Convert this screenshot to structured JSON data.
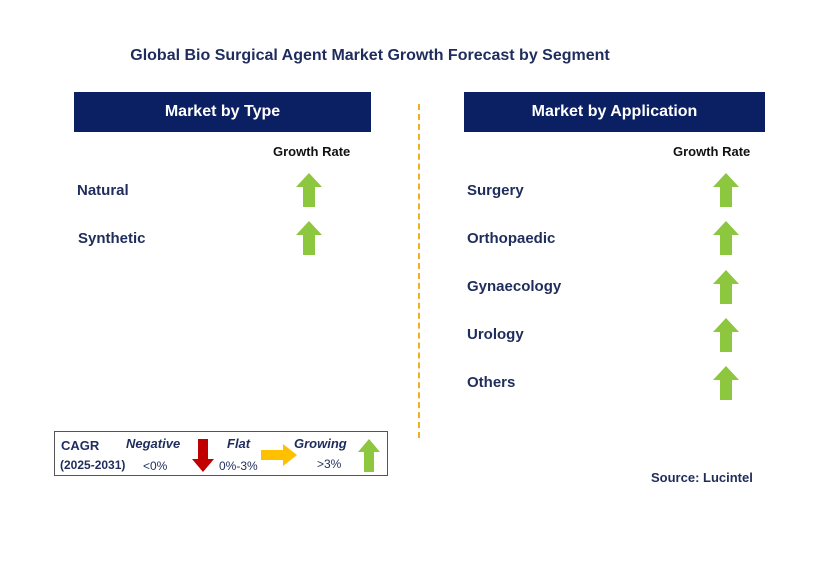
{
  "title": "Global Bio Surgical Agent Market Growth Forecast by Segment",
  "left_panel": {
    "header": "Market by Type",
    "growth_label": "Growth Rate",
    "items": [
      {
        "label": "Natural",
        "trend": "growing"
      },
      {
        "label": "Synthetic",
        "trend": "growing"
      }
    ]
  },
  "right_panel": {
    "header": "Market by Application",
    "growth_label": "Growth Rate",
    "items": [
      {
        "label": "Surgery",
        "trend": "growing"
      },
      {
        "label": "Orthopaedic",
        "trend": "growing"
      },
      {
        "label": "Gynaecology",
        "trend": "growing"
      },
      {
        "label": "Urology",
        "trend": "growing"
      },
      {
        "label": "Others",
        "trend": "growing"
      }
    ]
  },
  "legend": {
    "cagr_label": "CAGR",
    "period": "(2025-2031)",
    "negative_label": "Negative",
    "negative_range": "<0%",
    "flat_label": "Flat",
    "flat_range": "0%-3%",
    "growing_label": "Growing",
    "growing_range": ">3%"
  },
  "source": "Source: Lucintel",
  "colors": {
    "header_bg": "#0b2062",
    "text_navy": "#1f2d5c",
    "arrow_green": "#8dc63f",
    "arrow_red": "#c00000",
    "arrow_orange": "#ffc000",
    "divider": "#f0b020"
  }
}
